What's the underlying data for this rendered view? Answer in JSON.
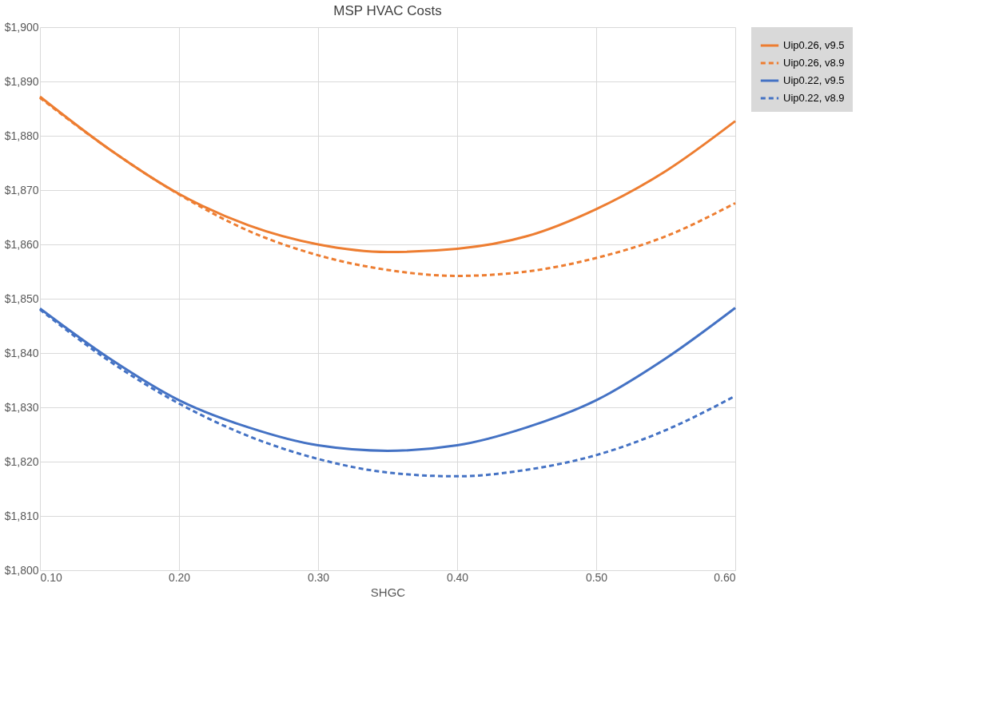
{
  "chart_data": {
    "type": "line",
    "title": "MSP HVAC Costs",
    "xlabel": "SHGC",
    "x": [
      0.1,
      0.15,
      0.2,
      0.25,
      0.3,
      0.35,
      0.4,
      0.45,
      0.5,
      0.55,
      0.6
    ],
    "series": [
      {
        "name": "Uip0.26, v9.5",
        "color": "#ed7d31",
        "line_style": "solid",
        "values": [
          1887.2,
          1877.5,
          1869.3,
          1863.5,
          1860.0,
          1858.6,
          1859.2,
          1861.5,
          1866.5,
          1873.5,
          1882.7
        ]
      },
      {
        "name": "Uip0.26, v8.9",
        "color": "#ed7d31",
        "line_style": "dashed",
        "values": [
          1887.0,
          1877.5,
          1869.2,
          1862.5,
          1858.0,
          1855.3,
          1854.2,
          1855.0,
          1857.5,
          1861.5,
          1867.6
        ]
      },
      {
        "name": "Uip0.22, v9.5",
        "color": "#4472c4",
        "line_style": "solid",
        "values": [
          1848.2,
          1839.0,
          1831.3,
          1826.3,
          1823.0,
          1822.0,
          1823.0,
          1826.3,
          1831.3,
          1839.0,
          1848.3
        ]
      },
      {
        "name": "Uip0.22, v8.9",
        "color": "#4472c4",
        "line_style": "dashed",
        "values": [
          1848.0,
          1838.5,
          1830.7,
          1824.7,
          1820.5,
          1818.0,
          1817.3,
          1818.5,
          1821.2,
          1825.8,
          1832.1
        ]
      }
    ],
    "xlim": [
      0.1,
      0.6
    ],
    "xticks": [
      {
        "value": 0.1,
        "label": "0.10"
      },
      {
        "value": 0.2,
        "label": "0.20"
      },
      {
        "value": 0.3,
        "label": "0.30"
      },
      {
        "value": 0.4,
        "label": "0.40"
      },
      {
        "value": 0.5,
        "label": "0.50"
      },
      {
        "value": 0.6,
        "label": "0.60"
      }
    ],
    "ylim": [
      1800,
      1900
    ],
    "yticks": [
      {
        "value": 1800,
        "label": "$1,800"
      },
      {
        "value": 1810,
        "label": "$1,810"
      },
      {
        "value": 1820,
        "label": "$1,820"
      },
      {
        "value": 1830,
        "label": "$1,830"
      },
      {
        "value": 1840,
        "label": "$1,840"
      },
      {
        "value": 1850,
        "label": "$1,850"
      },
      {
        "value": 1860,
        "label": "$1,860"
      },
      {
        "value": 1870,
        "label": "$1,870"
      },
      {
        "value": 1880,
        "label": "$1,880"
      },
      {
        "value": 1890,
        "label": "$1,890"
      },
      {
        "value": 1900,
        "label": "$1,900"
      }
    ],
    "grid": true,
    "legend": "right",
    "marker": "none"
  }
}
